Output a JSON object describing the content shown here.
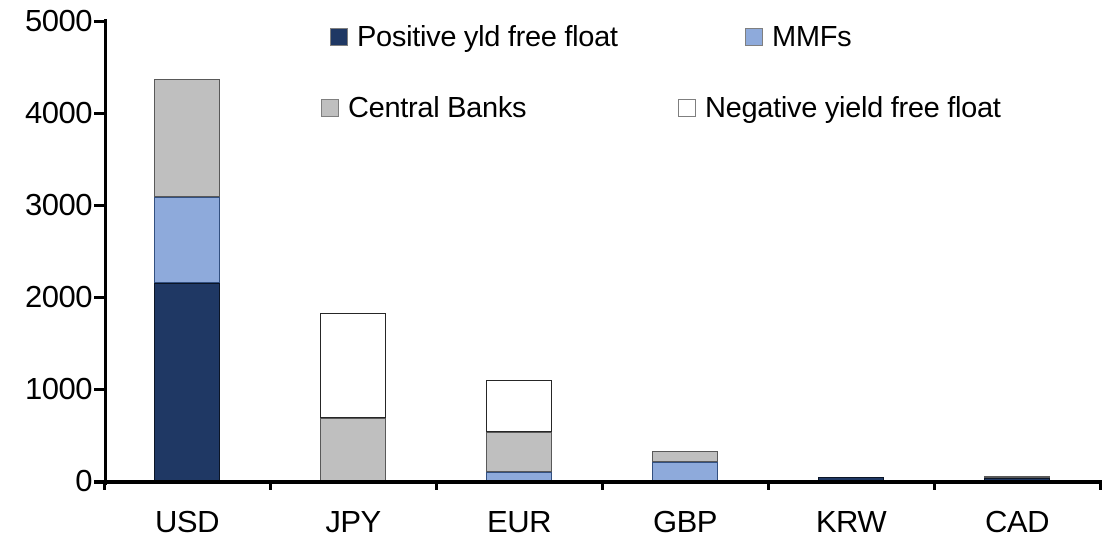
{
  "chart_data": {
    "type": "bar",
    "stacked": true,
    "title": "",
    "xlabel": "",
    "ylabel": "",
    "grid": false,
    "legend_position": "top",
    "ylim": [
      0,
      5000
    ],
    "yticks": [
      0,
      1000,
      2000,
      3000,
      4000,
      5000
    ],
    "ytick_labels": [
      "0",
      "1000",
      "2000",
      "3000",
      "4000",
      "5000"
    ],
    "categories": [
      "USD",
      "JPY",
      "EUR",
      "GBP",
      "KRW",
      "CAD"
    ],
    "series": [
      {
        "name": "Positive yld free float",
        "color": "#1F3864",
        "border": "#0B1526",
        "values": [
          2150,
          0,
          0,
          0,
          40,
          30
        ]
      },
      {
        "name": "MMFs",
        "color": "#8EAADB",
        "border": "#335080",
        "values": [
          940,
          0,
          100,
          210,
          0,
          0
        ]
      },
      {
        "name": "Central Banks",
        "color": "#BFBFBF",
        "border": "#595959",
        "values": [
          1280,
          690,
          430,
          120,
          0,
          25
        ]
      },
      {
        "name": "Negative yield free float",
        "color": "#FFFFFF",
        "border": "#262626",
        "values": [
          0,
          1140,
          570,
          0,
          0,
          0
        ]
      }
    ],
    "totals": [
      4370,
      1830,
      1100,
      330,
      40,
      55
    ],
    "axis_color": "#000000",
    "text_color": "#000000"
  }
}
